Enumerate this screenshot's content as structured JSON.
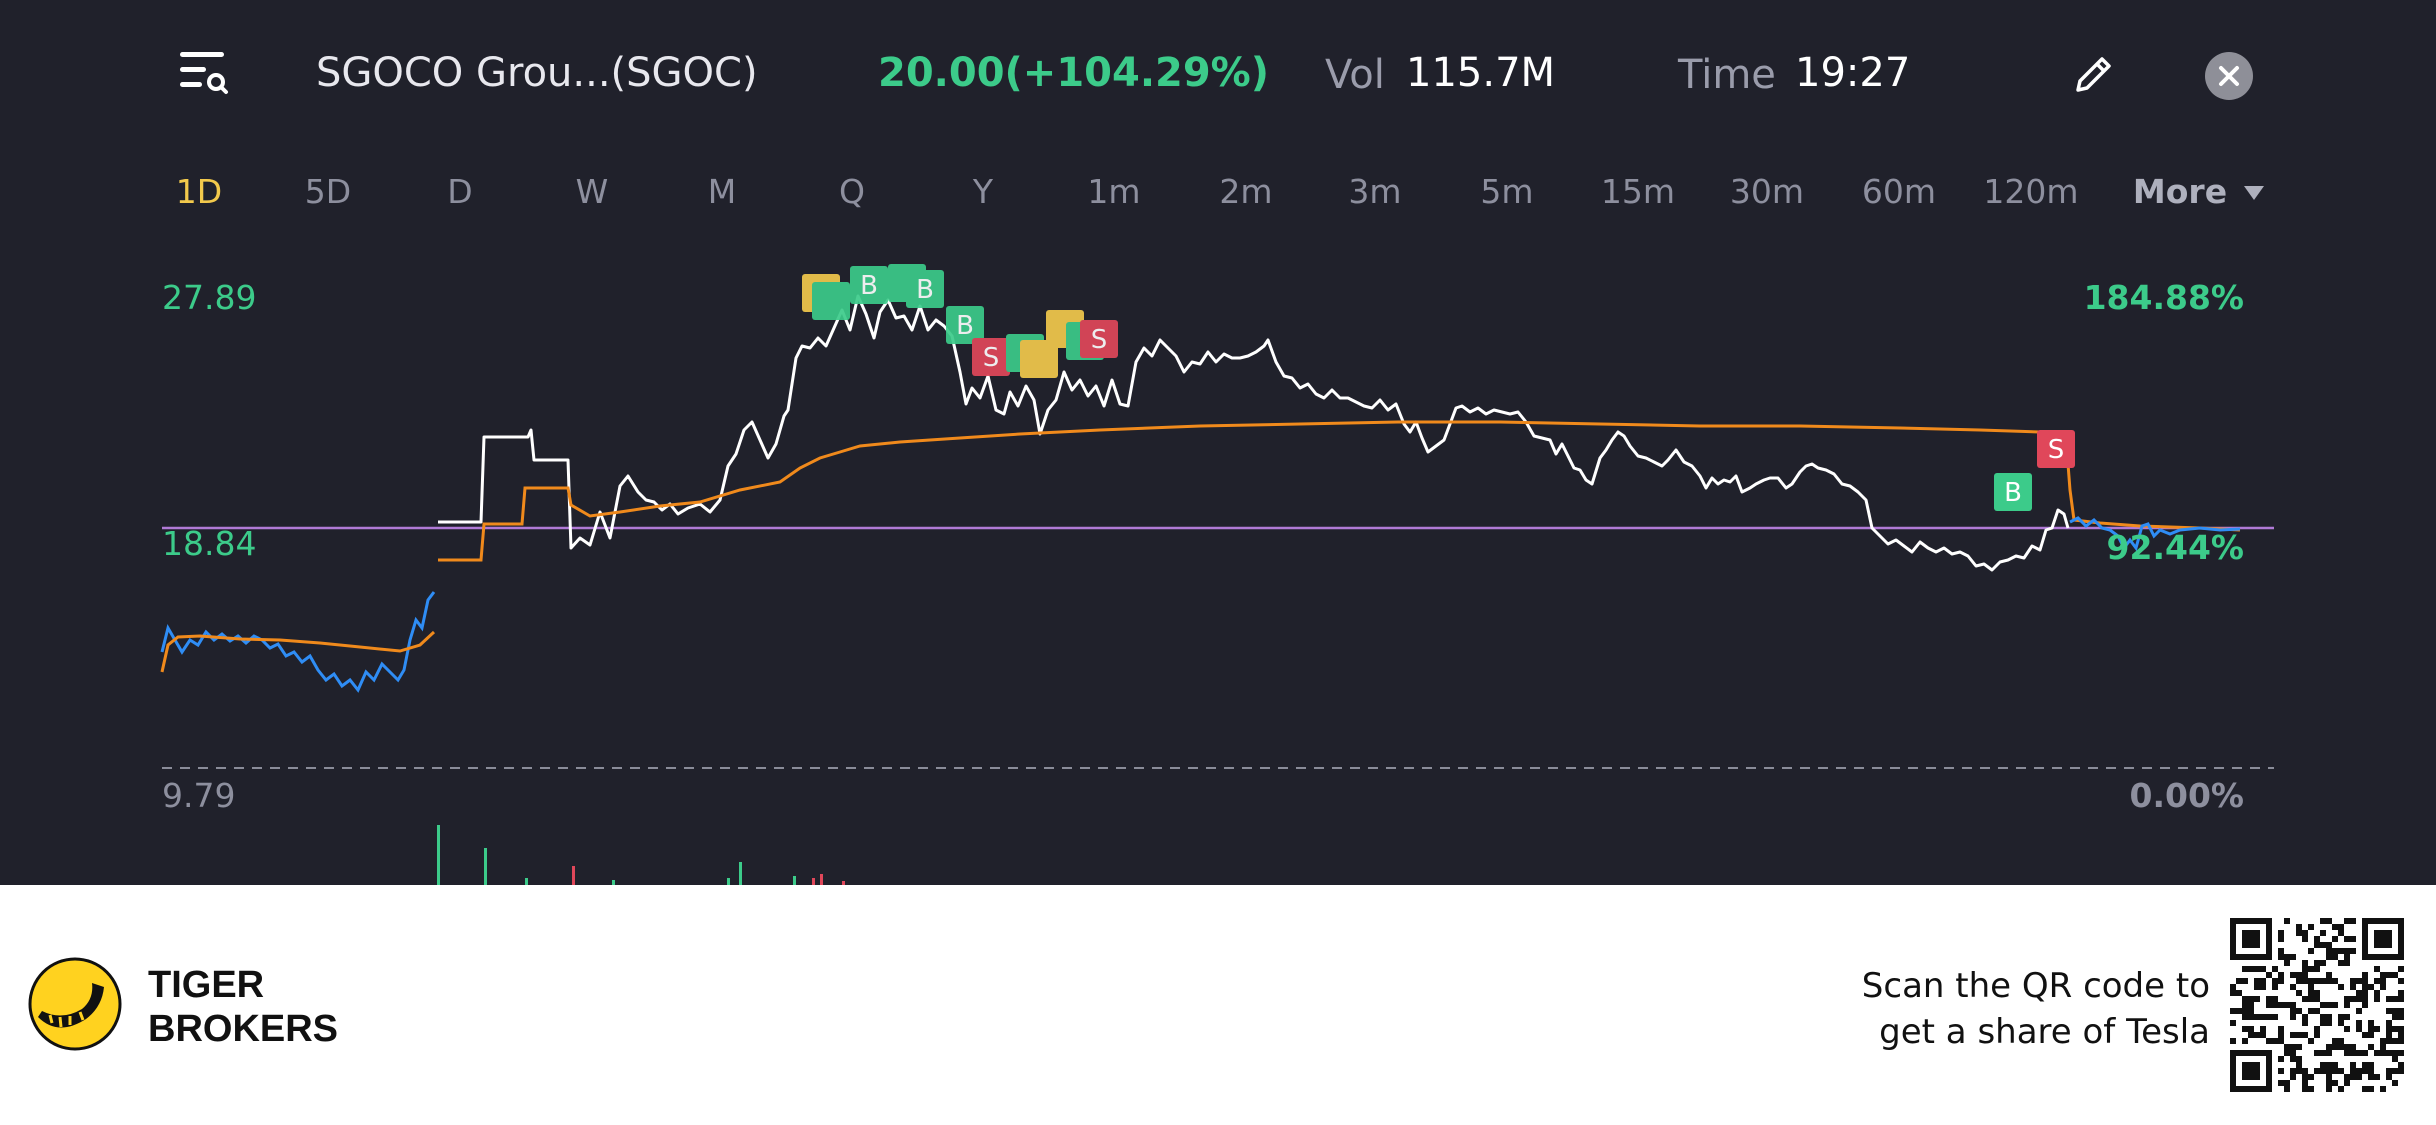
{
  "header": {
    "ticker_title": "SGOCO Grou...(SGOC)",
    "price_change": "20.00(+104.29%)",
    "volume_label": "Vol",
    "volume_value": "115.7M",
    "time_label": "Time",
    "time_value": "19:27"
  },
  "tabs": [
    "1D",
    "5D",
    "D",
    "W",
    "M",
    "Q",
    "Y",
    "1m",
    "2m",
    "3m",
    "5m",
    "15m",
    "30m",
    "60m",
    "120m"
  ],
  "active_tab": "1D",
  "more_label": "More",
  "chart": {
    "y_max_label": "27.89",
    "y_mid_label": "18.84",
    "y_min_label": "9.79",
    "pct_max_label": "184.88%",
    "pct_mid_label": "92.44%",
    "pct_min_label": "0.00%"
  },
  "chart_data": {
    "type": "line",
    "ylim": [
      9.79,
      27.89
    ],
    "pct_range": [
      "0.00%",
      "184.88%"
    ],
    "reference_price": 18.84,
    "series": [],
    "trade_markers": [
      "B",
      "S",
      "B",
      "S",
      "B",
      "S",
      "S",
      "B",
      "B",
      "S"
    ]
  },
  "colors": {
    "background": "#20212b",
    "price_line": "#ffffff",
    "avg_line": "#f08a1c",
    "extended_hours_line": "#2f8df5",
    "reference_line": "#b07ad6",
    "up": "#3ccb8a",
    "down": "#e0475a",
    "active_tab": "#f2c94c"
  },
  "icons": {
    "menu": "search-list-icon",
    "edit": "pencil-icon",
    "close": "close-icon",
    "more": "triangle-down-icon",
    "logo": "tiger-logo-icon",
    "qr": "qr-code-icon"
  },
  "footer": {
    "brand_line1": "TIGER",
    "brand_line2": "BROKERS",
    "promo_line1": "Scan the QR code to",
    "promo_line2": "get a share of Tesla"
  }
}
